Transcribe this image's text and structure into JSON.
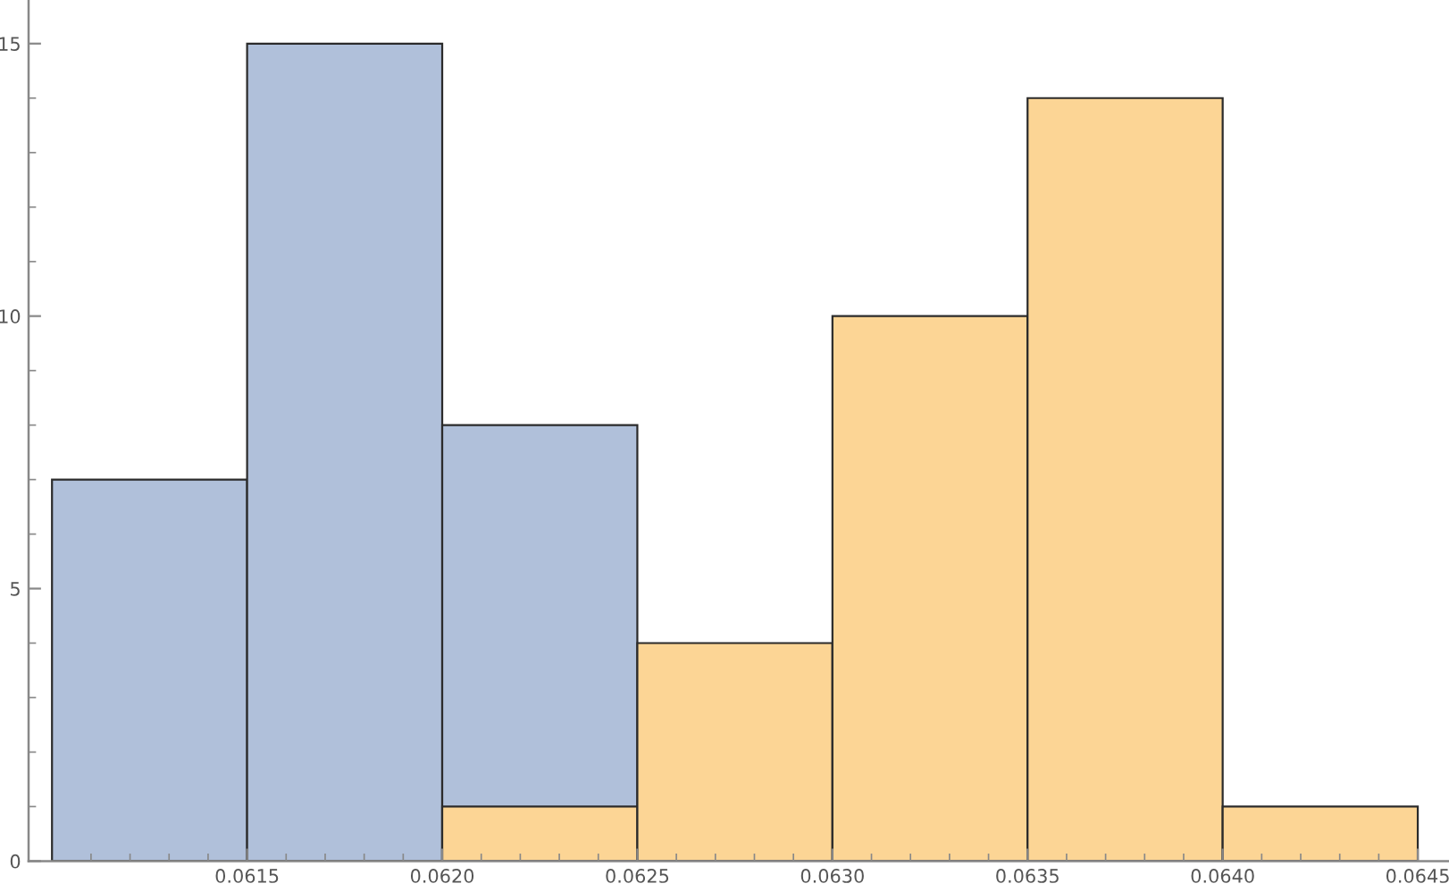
{
  "chart_data": {
    "type": "histogram",
    "bins": [
      0.061,
      0.0615,
      0.062,
      0.0625,
      0.063,
      0.0635,
      0.064,
      0.0645
    ],
    "series": [
      {
        "color": "#b0c0da",
        "values": [
          7,
          15,
          8,
          null,
          null,
          null,
          null
        ]
      },
      {
        "color": "#fcd595",
        "values": [
          null,
          null,
          1,
          4,
          10,
          14,
          1
        ]
      }
    ],
    "xlim": [
      0.06094,
      0.06458
    ],
    "xticks": [
      {
        "value": 0.0611,
        "label": null
      },
      {
        "value": 0.0612,
        "label": null
      },
      {
        "value": 0.0613,
        "label": null
      },
      {
        "value": 0.0614,
        "label": null
      },
      0.0615,
      {
        "value": 0.0616,
        "label": null
      },
      {
        "value": 0.0617,
        "label": null
      },
      {
        "value": 0.0618,
        "label": null
      },
      {
        "value": 0.0619,
        "label": null
      },
      {
        "value": 0.062,
        "label": "0.0620"
      },
      {
        "value": 0.0621,
        "label": null
      },
      {
        "value": 0.0622,
        "label": null
      },
      {
        "value": 0.0623,
        "label": null
      },
      {
        "value": 0.0624,
        "label": null
      },
      0.0625,
      {
        "value": 0.0626,
        "label": null
      },
      {
        "value": 0.0627,
        "label": null
      },
      {
        "value": 0.0628,
        "label": null
      },
      {
        "value": 0.0629,
        "label": null
      },
      {
        "value": 0.063,
        "label": "0.0630"
      },
      {
        "value": 0.0631,
        "label": null
      },
      {
        "value": 0.0632,
        "label": null
      },
      {
        "value": 0.0633,
        "label": null
      },
      {
        "value": 0.0634,
        "label": null
      },
      0.0635,
      {
        "value": 0.0636,
        "label": null
      },
      {
        "value": 0.0637,
        "label": null
      },
      {
        "value": 0.0638,
        "label": null
      },
      {
        "value": 0.0639,
        "label": null
      },
      {
        "value": 0.064,
        "label": "0.0640"
      },
      {
        "value": 0.0641,
        "label": null
      },
      {
        "value": 0.0642,
        "label": null
      },
      {
        "value": 0.0643,
        "label": null
      },
      {
        "value": 0.0644,
        "label": null
      },
      0.0645
    ],
    "ylim": [
      0,
      15.8
    ],
    "yticks": [
      0,
      {
        "value": 1,
        "label": null
      },
      {
        "value": 2,
        "label": null
      },
      {
        "value": 3,
        "label": null
      },
      {
        "value": 4,
        "label": null
      },
      5,
      {
        "value": 6,
        "label": null
      },
      {
        "value": 7,
        "label": null
      },
      {
        "value": 8,
        "label": null
      },
      {
        "value": 9,
        "label": null
      },
      10,
      {
        "value": 11,
        "label": null
      },
      {
        "value": 12,
        "label": null
      },
      {
        "value": 13,
        "label": null
      },
      {
        "value": 14,
        "label": null
      },
      15
    ]
  }
}
